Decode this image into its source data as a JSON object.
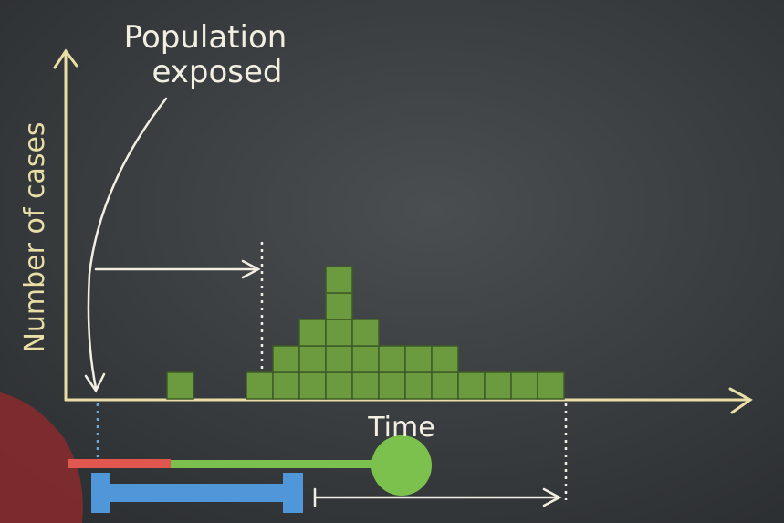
{
  "chart_data": {
    "type": "bar",
    "annotation": "Population exposed",
    "ylabel": "Number of cases",
    "xlabel": "Time",
    "categories": [
      null,
      null,
      null,
      null,
      null,
      null,
      null,
      null,
      null,
      null,
      null,
      null,
      null,
      null,
      null
    ],
    "values": [
      1,
      0,
      0,
      1,
      2,
      3,
      5,
      3,
      2,
      2,
      2,
      1,
      1,
      1,
      1
    ],
    "color": "#6b9a3f"
  }
}
